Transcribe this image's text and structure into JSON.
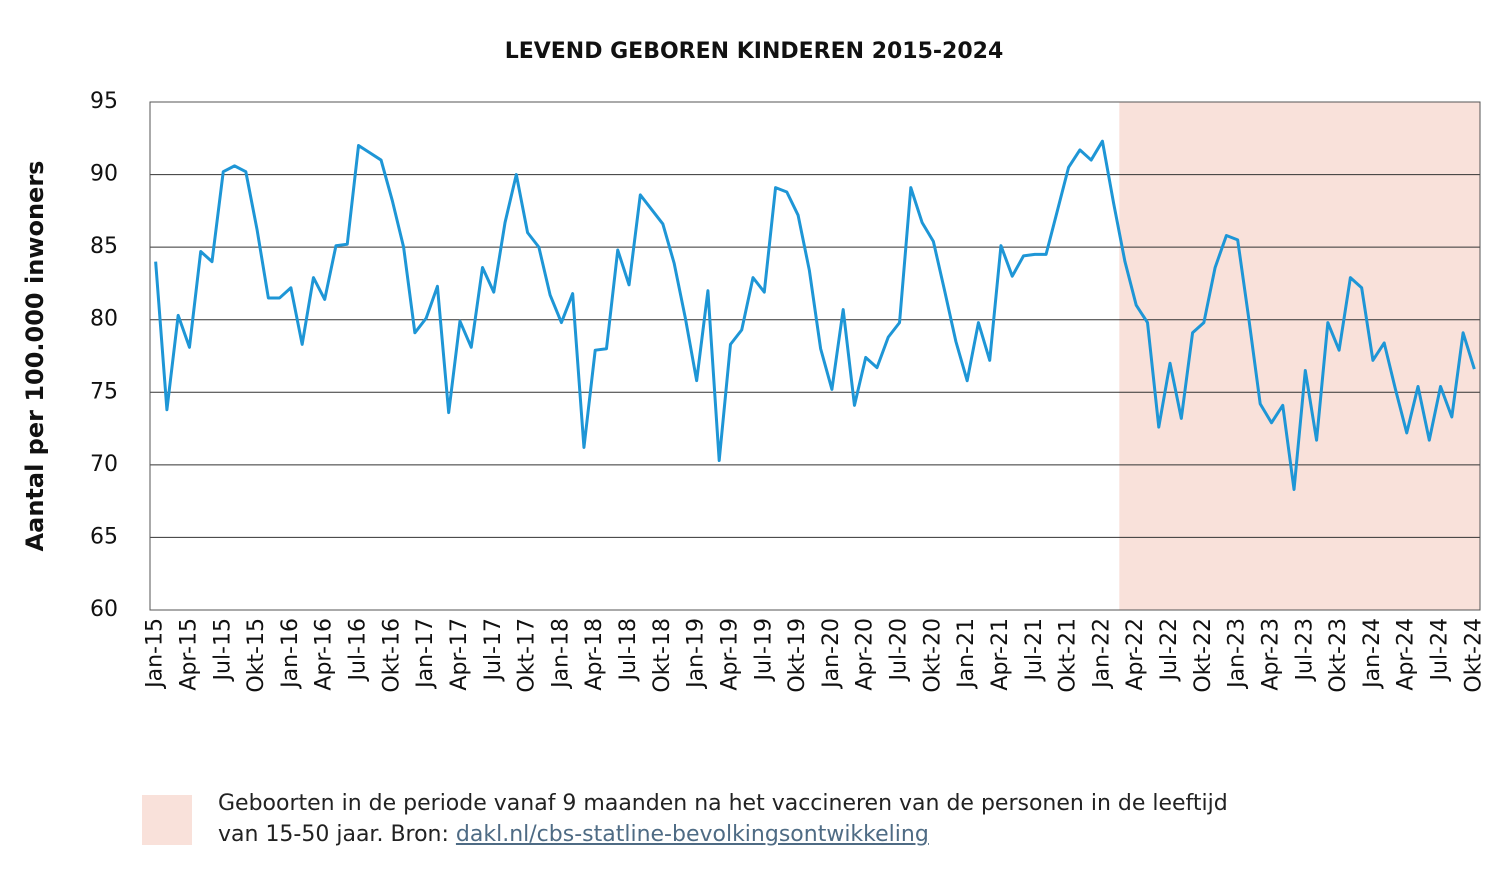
{
  "chart_data": {
    "type": "line",
    "title": "LEVEND GEBOREN KINDEREN 2015-2024",
    "y_label": "Aantal per 100.000 inwoners",
    "categories": [
      "Jan-15",
      null,
      null,
      "Apr-15",
      null,
      null,
      "Jul-15",
      null,
      null,
      "Okt-15",
      null,
      null,
      "Jan-16",
      null,
      null,
      "Apr-16",
      null,
      null,
      "Jul-16",
      null,
      null,
      "Okt-16",
      null,
      null,
      "Jan-17",
      null,
      null,
      "Apr-17",
      null,
      null,
      "Jul-17",
      null,
      null,
      "Okt-17",
      null,
      null,
      "Jan-18",
      null,
      null,
      "Apr-18",
      null,
      null,
      "Jul-18",
      null,
      null,
      "Okt-18",
      null,
      null,
      "Jan-19",
      null,
      null,
      "Apr-19",
      null,
      null,
      "Jul-19",
      null,
      null,
      "Okt-19",
      null,
      null,
      "Jan-20",
      null,
      null,
      "Apr-20",
      null,
      null,
      "Jul-20",
      null,
      null,
      "Okt-20",
      null,
      null,
      "Jan-21",
      null,
      null,
      "Apr-21",
      null,
      null,
      "Jul-21",
      null,
      null,
      "Okt-21",
      null,
      null,
      "Jan-22",
      null,
      null,
      "Apr-22",
      null,
      null,
      "Jul-22",
      null,
      null,
      "Okt-22",
      null,
      null,
      "Jan-23",
      null,
      null,
      "Apr-23",
      null,
      null,
      "Jul-23",
      null,
      null,
      "Okt-23",
      null,
      null,
      "Jan-24",
      null,
      null,
      "Apr-24",
      null,
      null,
      "Jul-24",
      null,
      null,
      "Okt-24"
    ],
    "series": [
      {
        "color": "#1e96d6",
        "values": [
          84.0,
          73.8,
          80.3,
          78.1,
          84.7,
          84.0,
          90.2,
          90.6,
          90.2,
          86.2,
          81.5,
          81.5,
          82.2,
          78.3,
          82.9,
          81.4,
          85.1,
          85.2,
          92.0,
          91.5,
          91.0,
          88.2,
          85.0,
          79.1,
          80.1,
          82.3,
          73.6,
          79.9,
          78.1,
          83.6,
          81.9,
          86.7,
          90.0,
          86.0,
          85.0,
          81.7,
          79.8,
          81.8,
          71.2,
          77.9,
          78.0,
          84.8,
          82.4,
          88.6,
          87.6,
          86.6,
          83.9,
          80.1,
          75.8,
          82.0,
          70.3,
          78.3,
          79.3,
          82.9,
          81.9,
          89.1,
          88.8,
          87.2,
          83.4,
          78.0,
          75.2,
          80.7,
          74.1,
          77.4,
          76.7,
          78.8,
          79.8,
          89.1,
          86.7,
          85.4,
          82.0,
          78.5,
          75.8,
          79.8,
          77.2,
          85.1,
          83.0,
          84.4,
          84.5,
          84.5,
          87.5,
          90.5,
          91.7,
          91.0,
          92.3,
          88.0,
          84.0,
          81.0,
          79.8,
          72.6,
          77.0,
          73.2,
          79.1,
          79.8,
          83.6,
          85.8,
          85.5,
          80.0,
          74.2,
          72.9,
          74.1,
          68.3,
          76.5,
          71.7,
          79.8,
          77.9,
          82.9,
          82.2,
          77.2,
          78.4,
          75.2,
          72.2,
          75.4,
          71.7,
          75.4,
          73.3,
          79.1,
          76.6
        ]
      }
    ],
    "ylim": [
      60,
      95
    ],
    "yticks": [
      60,
      65,
      70,
      75,
      80,
      85,
      90,
      95
    ],
    "grid": true,
    "highlight": {
      "start": 86,
      "color": "#f9e1da"
    },
    "legend": {
      "lines": [
        "Geboorten in de periode vanaf 9 maanden na het vaccineren van de personen in de leeftijd",
        "van 15-50 jaar. Bron:"
      ],
      "link": "dakl.nl/cbs-statline-bevolkingsontwikkeling"
    }
  }
}
